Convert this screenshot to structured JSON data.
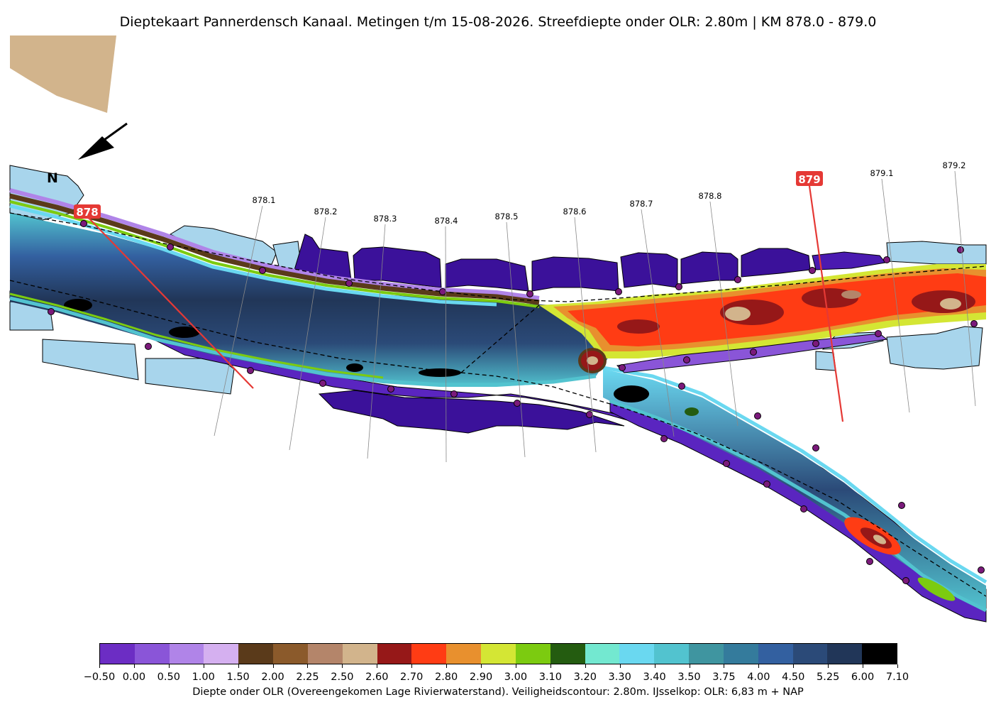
{
  "title": "Dieptekaart Pannerdensch Kanaal. Metingen t/m 15-08-2026. Streefdiepte onder OLR: 2.80m | KM 878.0 - 879.0",
  "north_label": "N",
  "km_markers": {
    "major": [
      "878",
      "879"
    ],
    "minor": [
      "878.1",
      "878.2",
      "878.3",
      "878.4",
      "878.5",
      "878.6",
      "878.7",
      "878.8",
      "879.1",
      "879.2"
    ]
  },
  "colorbar": {
    "colors": [
      "#6c2dc4",
      "#8a55d8",
      "#b084e8",
      "#d5b0f0",
      "#5a3a1a",
      "#8b5a2b",
      "#b4856a",
      "#d2b48c",
      "#961818",
      "#ff3c14",
      "#e8902e",
      "#d4e634",
      "#7ccb10",
      "#245c10",
      "#73e8d0",
      "#6ad8f0",
      "#52c3cf",
      "#3f95a0",
      "#347b9c",
      "#3360a0",
      "#2b4a78",
      "#213658",
      "#000000"
    ],
    "tick_labels": [
      "−0.50",
      "0.00",
      "0.50",
      "1.00",
      "1.50",
      "2.00",
      "2.25",
      "2.50",
      "2.60",
      "2.70",
      "2.80",
      "2.90",
      "3.00",
      "3.10",
      "3.20",
      "3.30",
      "3.40",
      "3.50",
      "3.75",
      "4.00",
      "4.50",
      "5.25",
      "6.00",
      "7.10"
    ],
    "caption": "Diepte onder OLR (Overeengekomen Lage Rivierwaterstand). Veiligheidscontour: 2.80m. IJsselkop: OLR: 6,83 m + NAP"
  },
  "colors": {
    "land": "#d2b48c",
    "shallow_water": "#a8d5ec",
    "major_marker": "#e53935",
    "dredged_edge": "#3b119a"
  }
}
